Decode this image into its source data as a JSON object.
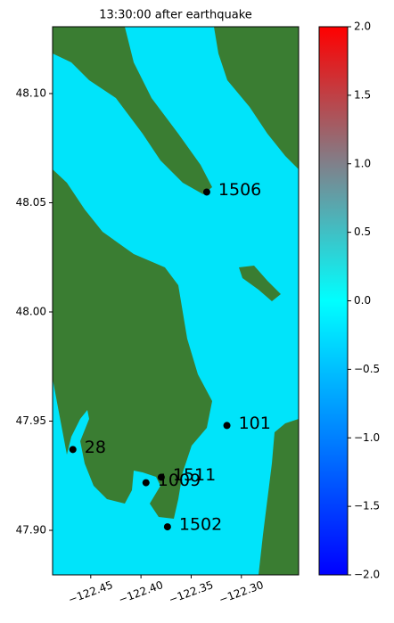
{
  "chart_data": {
    "type": "scatter",
    "title": "13:30:00 after earthquake",
    "labels": [
      "1506",
      "28",
      "1009",
      "1511",
      "1502",
      "101"
    ],
    "x": [
      -122.3345,
      -122.4678,
      -122.395,
      -122.3798,
      -122.3736,
      -122.3144
    ],
    "y": [
      48.0549,
      47.937,
      47.9218,
      47.9243,
      47.9016,
      47.948
    ],
    "color": "#000000",
    "xlim": [
      -122.488,
      -122.243
    ],
    "ylim": [
      47.8796,
      48.1306
    ],
    "xticks": [
      {
        "value": -122.45,
        "label": "−122.45"
      },
      {
        "value": -122.4,
        "label": "−122.40"
      },
      {
        "value": -122.35,
        "label": "−122.35"
      },
      {
        "value": -122.3,
        "label": "−122.30"
      }
    ],
    "yticks": [
      {
        "value": 48.1,
        "label": "48.10"
      },
      48.05,
      {
        "value": 48.0,
        "label": "48.00"
      },
      47.95,
      {
        "value": 47.9,
        "label": "47.90"
      }
    ],
    "colorbar": {
      "lim": [
        -2,
        2
      ],
      "ticks": [
        {
          "value": 2,
          "label": "2.0"
        },
        {
          "value": 1.5,
          "label": "1.5"
        },
        {
          "value": 1,
          "label": "1.0"
        },
        {
          "value": 0.5,
          "label": "0.5"
        },
        {
          "value": 0,
          "label": "0.0"
        },
        {
          "value": -0.5,
          "label": "−0.5"
        },
        {
          "value": -1,
          "label": "−1.0"
        },
        {
          "value": -1.5,
          "label": "−1.5"
        },
        {
          "value": -2,
          "label": "−2.0"
        }
      ]
    }
  }
}
